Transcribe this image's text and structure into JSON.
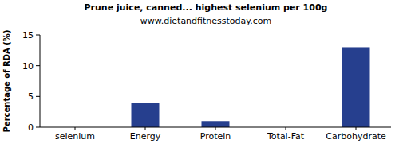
{
  "chart_data": {
    "type": "bar",
    "title": "Prune juice, canned... highest selenium per 100g",
    "subtitle": "www.dietandfitnesstoday.com",
    "y_label": "Percentage of RDA (%)",
    "categories": [
      "selenium",
      "Energy",
      "Protein",
      "Total-Fat",
      "Carbohydrate"
    ],
    "values": [
      0,
      4,
      1,
      0,
      13
    ],
    "color": "#263f8e",
    "ylim": [
      0,
      15
    ],
    "yticks": [
      0,
      5,
      10,
      15
    ],
    "grid": false
  }
}
